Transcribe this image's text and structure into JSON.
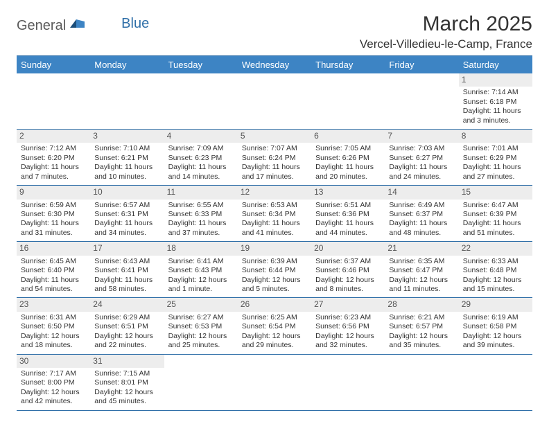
{
  "brand": {
    "name1": "General",
    "name2": "Blue"
  },
  "title": "March 2025",
  "location": "Vercel-Villedieu-le-Camp, France",
  "colors": {
    "header_bg": "#3d84c4",
    "border": "#2f6fa8",
    "daynum_bg": "#ededed",
    "text": "#333333"
  },
  "dow": [
    "Sunday",
    "Monday",
    "Tuesday",
    "Wednesday",
    "Thursday",
    "Friday",
    "Saturday"
  ],
  "weeks": [
    [
      null,
      null,
      null,
      null,
      null,
      null,
      {
        "n": "1",
        "sr": "Sunrise: 7:14 AM",
        "ss": "Sunset: 6:18 PM",
        "d1": "Daylight: 11 hours",
        "d2": "and 3 minutes."
      }
    ],
    [
      {
        "n": "2",
        "sr": "Sunrise: 7:12 AM",
        "ss": "Sunset: 6:20 PM",
        "d1": "Daylight: 11 hours",
        "d2": "and 7 minutes."
      },
      {
        "n": "3",
        "sr": "Sunrise: 7:10 AM",
        "ss": "Sunset: 6:21 PM",
        "d1": "Daylight: 11 hours",
        "d2": "and 10 minutes."
      },
      {
        "n": "4",
        "sr": "Sunrise: 7:09 AM",
        "ss": "Sunset: 6:23 PM",
        "d1": "Daylight: 11 hours",
        "d2": "and 14 minutes."
      },
      {
        "n": "5",
        "sr": "Sunrise: 7:07 AM",
        "ss": "Sunset: 6:24 PM",
        "d1": "Daylight: 11 hours",
        "d2": "and 17 minutes."
      },
      {
        "n": "6",
        "sr": "Sunrise: 7:05 AM",
        "ss": "Sunset: 6:26 PM",
        "d1": "Daylight: 11 hours",
        "d2": "and 20 minutes."
      },
      {
        "n": "7",
        "sr": "Sunrise: 7:03 AM",
        "ss": "Sunset: 6:27 PM",
        "d1": "Daylight: 11 hours",
        "d2": "and 24 minutes."
      },
      {
        "n": "8",
        "sr": "Sunrise: 7:01 AM",
        "ss": "Sunset: 6:29 PM",
        "d1": "Daylight: 11 hours",
        "d2": "and 27 minutes."
      }
    ],
    [
      {
        "n": "9",
        "sr": "Sunrise: 6:59 AM",
        "ss": "Sunset: 6:30 PM",
        "d1": "Daylight: 11 hours",
        "d2": "and 31 minutes."
      },
      {
        "n": "10",
        "sr": "Sunrise: 6:57 AM",
        "ss": "Sunset: 6:31 PM",
        "d1": "Daylight: 11 hours",
        "d2": "and 34 minutes."
      },
      {
        "n": "11",
        "sr": "Sunrise: 6:55 AM",
        "ss": "Sunset: 6:33 PM",
        "d1": "Daylight: 11 hours",
        "d2": "and 37 minutes."
      },
      {
        "n": "12",
        "sr": "Sunrise: 6:53 AM",
        "ss": "Sunset: 6:34 PM",
        "d1": "Daylight: 11 hours",
        "d2": "and 41 minutes."
      },
      {
        "n": "13",
        "sr": "Sunrise: 6:51 AM",
        "ss": "Sunset: 6:36 PM",
        "d1": "Daylight: 11 hours",
        "d2": "and 44 minutes."
      },
      {
        "n": "14",
        "sr": "Sunrise: 6:49 AM",
        "ss": "Sunset: 6:37 PM",
        "d1": "Daylight: 11 hours",
        "d2": "and 48 minutes."
      },
      {
        "n": "15",
        "sr": "Sunrise: 6:47 AM",
        "ss": "Sunset: 6:39 PM",
        "d1": "Daylight: 11 hours",
        "d2": "and 51 minutes."
      }
    ],
    [
      {
        "n": "16",
        "sr": "Sunrise: 6:45 AM",
        "ss": "Sunset: 6:40 PM",
        "d1": "Daylight: 11 hours",
        "d2": "and 54 minutes."
      },
      {
        "n": "17",
        "sr": "Sunrise: 6:43 AM",
        "ss": "Sunset: 6:41 PM",
        "d1": "Daylight: 11 hours",
        "d2": "and 58 minutes."
      },
      {
        "n": "18",
        "sr": "Sunrise: 6:41 AM",
        "ss": "Sunset: 6:43 PM",
        "d1": "Daylight: 12 hours",
        "d2": "and 1 minute."
      },
      {
        "n": "19",
        "sr": "Sunrise: 6:39 AM",
        "ss": "Sunset: 6:44 PM",
        "d1": "Daylight: 12 hours",
        "d2": "and 5 minutes."
      },
      {
        "n": "20",
        "sr": "Sunrise: 6:37 AM",
        "ss": "Sunset: 6:46 PM",
        "d1": "Daylight: 12 hours",
        "d2": "and 8 minutes."
      },
      {
        "n": "21",
        "sr": "Sunrise: 6:35 AM",
        "ss": "Sunset: 6:47 PM",
        "d1": "Daylight: 12 hours",
        "d2": "and 11 minutes."
      },
      {
        "n": "22",
        "sr": "Sunrise: 6:33 AM",
        "ss": "Sunset: 6:48 PM",
        "d1": "Daylight: 12 hours",
        "d2": "and 15 minutes."
      }
    ],
    [
      {
        "n": "23",
        "sr": "Sunrise: 6:31 AM",
        "ss": "Sunset: 6:50 PM",
        "d1": "Daylight: 12 hours",
        "d2": "and 18 minutes."
      },
      {
        "n": "24",
        "sr": "Sunrise: 6:29 AM",
        "ss": "Sunset: 6:51 PM",
        "d1": "Daylight: 12 hours",
        "d2": "and 22 minutes."
      },
      {
        "n": "25",
        "sr": "Sunrise: 6:27 AM",
        "ss": "Sunset: 6:53 PM",
        "d1": "Daylight: 12 hours",
        "d2": "and 25 minutes."
      },
      {
        "n": "26",
        "sr": "Sunrise: 6:25 AM",
        "ss": "Sunset: 6:54 PM",
        "d1": "Daylight: 12 hours",
        "d2": "and 29 minutes."
      },
      {
        "n": "27",
        "sr": "Sunrise: 6:23 AM",
        "ss": "Sunset: 6:56 PM",
        "d1": "Daylight: 12 hours",
        "d2": "and 32 minutes."
      },
      {
        "n": "28",
        "sr": "Sunrise: 6:21 AM",
        "ss": "Sunset: 6:57 PM",
        "d1": "Daylight: 12 hours",
        "d2": "and 35 minutes."
      },
      {
        "n": "29",
        "sr": "Sunrise: 6:19 AM",
        "ss": "Sunset: 6:58 PM",
        "d1": "Daylight: 12 hours",
        "d2": "and 39 minutes."
      }
    ],
    [
      {
        "n": "30",
        "sr": "Sunrise: 7:17 AM",
        "ss": "Sunset: 8:00 PM",
        "d1": "Daylight: 12 hours",
        "d2": "and 42 minutes."
      },
      {
        "n": "31",
        "sr": "Sunrise: 7:15 AM",
        "ss": "Sunset: 8:01 PM",
        "d1": "Daylight: 12 hours",
        "d2": "and 45 minutes."
      },
      null,
      null,
      null,
      null,
      null
    ]
  ]
}
